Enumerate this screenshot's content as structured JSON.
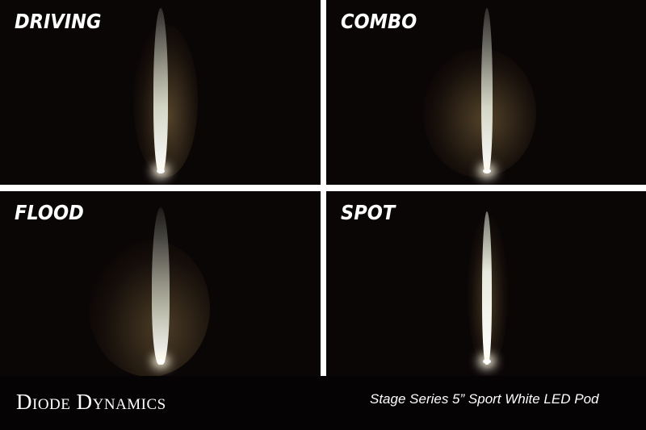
{
  "panels": [
    {
      "label": "DRIVING"
    },
    {
      "label": "COMBO"
    },
    {
      "label": "FLOOD"
    },
    {
      "label": "SPOT"
    }
  ],
  "footer": {
    "brand": "Diode Dynamics",
    "product": "Stage Series 5” Sport White LED Pod"
  },
  "colors": {
    "background": "#0b0606",
    "divider": "#ffffff",
    "beam": "#f4f6ee",
    "spill": "#6b5a3a"
  }
}
